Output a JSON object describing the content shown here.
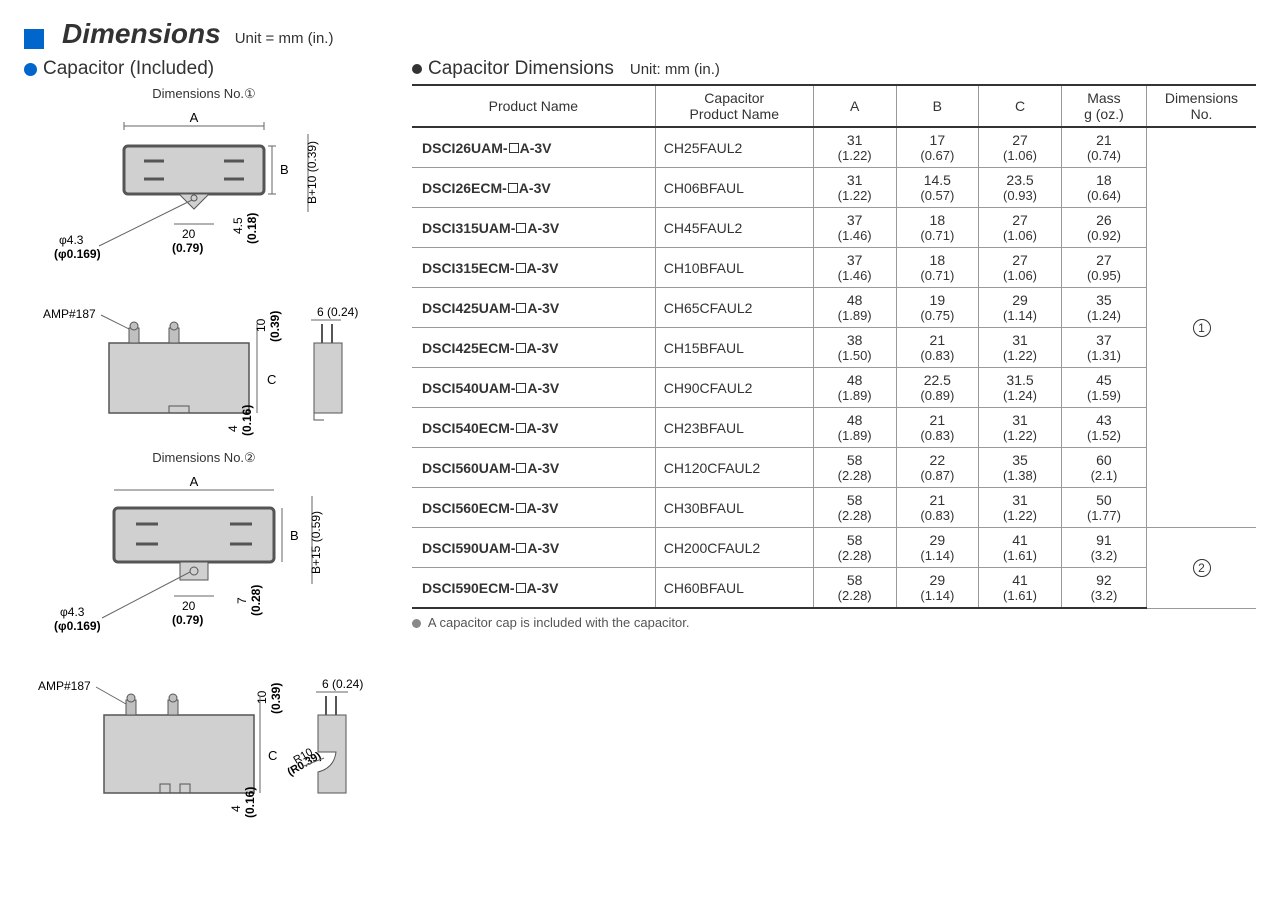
{
  "header": {
    "title": "Dimensions",
    "unit": "Unit = mm (in.)"
  },
  "left": {
    "title": "Capacitor (Included)",
    "dim1_label": "Dimensions No.①",
    "dim2_label": "Dimensions No.②",
    "amp_label": "AMP#187",
    "dim_A": "A",
    "dim_B": "B",
    "dim_C": "C",
    "phi": "φ4.3",
    "phi_in": "(φ0.169)",
    "d20": "20",
    "d20_in": "(0.79)",
    "d4_5": "4.5",
    "d4_5_in": "(0.18)",
    "bplus10": "B+10 (0.39)",
    "bplus15": "B+15 (0.59)",
    "d10": "10",
    "d10_in": "(0.39)",
    "d6": "6 (0.24)",
    "d4": "4",
    "d4_in": "(0.16)",
    "d7": "7",
    "d7_in": "(0.28)",
    "r10": "R10",
    "r10_in": "(R0.39)"
  },
  "right": {
    "title": "Capacitor Dimensions",
    "unit": "Unit: mm (in.)",
    "columns": [
      "Product Name",
      "Capacitor Product Name",
      "A",
      "B",
      "C",
      "Mass g (oz.)",
      "Dimensions No."
    ],
    "col_product": "Product Name",
    "col_cap": "Capacitor\nProduct Name",
    "col_A": "A",
    "col_B": "B",
    "col_C": "C",
    "col_mass": "Mass\ng (oz.)",
    "col_dim": "Dimensions\nNo.",
    "footnote": "A capacitor cap is included with the capacitor.",
    "dim_no_1": "①",
    "dim_no_2": "②",
    "rows": [
      {
        "pn": "DSCI26UAM-□A-3V",
        "cpn": "CH25FAUL2",
        "A": "31",
        "Ai": "(1.22)",
        "B": "17",
        "Bi": "(0.67)",
        "C": "27",
        "Ci": "(1.06)",
        "M": "21",
        "Mi": "(0.74)"
      },
      {
        "pn": "DSCI26ECM-□A-3V",
        "cpn": "CH06BFAUL",
        "A": "31",
        "Ai": "(1.22)",
        "B": "14.5",
        "Bi": "(0.57)",
        "C": "23.5",
        "Ci": "(0.93)",
        "M": "18",
        "Mi": "(0.64)"
      },
      {
        "pn": "DSCI315UAM-□A-3V",
        "cpn": "CH45FAUL2",
        "A": "37",
        "Ai": "(1.46)",
        "B": "18",
        "Bi": "(0.71)",
        "C": "27",
        "Ci": "(1.06)",
        "M": "26",
        "Mi": "(0.92)"
      },
      {
        "pn": "DSCI315ECM-□A-3V",
        "cpn": "CH10BFAUL",
        "A": "37",
        "Ai": "(1.46)",
        "B": "18",
        "Bi": "(0.71)",
        "C": "27",
        "Ci": "(1.06)",
        "M": "27",
        "Mi": "(0.95)"
      },
      {
        "pn": "DSCI425UAM-□A-3V",
        "cpn": "CH65CFAUL2",
        "A": "48",
        "Ai": "(1.89)",
        "B": "19",
        "Bi": "(0.75)",
        "C": "29",
        "Ci": "(1.14)",
        "M": "35",
        "Mi": "(1.24)"
      },
      {
        "pn": "DSCI425ECM-□A-3V",
        "cpn": "CH15BFAUL",
        "A": "38",
        "Ai": "(1.50)",
        "B": "21",
        "Bi": "(0.83)",
        "C": "31",
        "Ci": "(1.22)",
        "M": "37",
        "Mi": "(1.31)"
      },
      {
        "pn": "DSCI540UAM-□A-3V",
        "cpn": "CH90CFAUL2",
        "A": "48",
        "Ai": "(1.89)",
        "B": "22.5",
        "Bi": "(0.89)",
        "C": "31.5",
        "Ci": "(1.24)",
        "M": "45",
        "Mi": "(1.59)"
      },
      {
        "pn": "DSCI540ECM-□A-3V",
        "cpn": "CH23BFAUL",
        "A": "48",
        "Ai": "(1.89)",
        "B": "21",
        "Bi": "(0.83)",
        "C": "31",
        "Ci": "(1.22)",
        "M": "43",
        "Mi": "(1.52)"
      },
      {
        "pn": "DSCI560UAM-□A-3V",
        "cpn": "CH120CFAUL2",
        "A": "58",
        "Ai": "(2.28)",
        "B": "22",
        "Bi": "(0.87)",
        "C": "35",
        "Ci": "(1.38)",
        "M": "60",
        "Mi": "(2.1)"
      },
      {
        "pn": "DSCI560ECM-□A-3V",
        "cpn": "CH30BFAUL",
        "A": "58",
        "Ai": "(2.28)",
        "B": "21",
        "Bi": "(0.83)",
        "C": "31",
        "Ci": "(1.22)",
        "M": "50",
        "Mi": "(1.77)"
      },
      {
        "pn": "DSCI590UAM-□A-3V",
        "cpn": "CH200CFAUL2",
        "A": "58",
        "Ai": "(2.28)",
        "B": "29",
        "Bi": "(1.14)",
        "C": "41",
        "Ci": "(1.61)",
        "M": "91",
        "Mi": "(3.2)"
      },
      {
        "pn": "DSCI590ECM-□A-3V",
        "cpn": "CH60BFAUL",
        "A": "58",
        "Ai": "(2.28)",
        "B": "29",
        "Bi": "(1.14)",
        "C": "41",
        "Ci": "(1.61)",
        "M": "92",
        "Mi": "(3.2)"
      }
    ]
  }
}
